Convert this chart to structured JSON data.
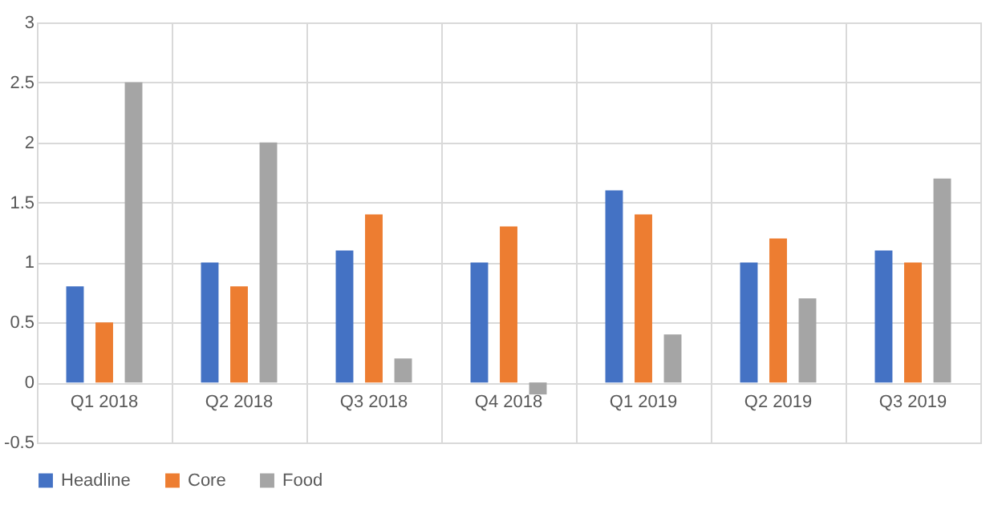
{
  "chart_data": {
    "type": "bar",
    "categories": [
      "Q1 2018",
      "Q2 2018",
      "Q3 2018",
      "Q4 2018",
      "Q1 2019",
      "Q2 2019",
      "Q3 2019"
    ],
    "series": [
      {
        "name": "Headline",
        "color": "#4472c4",
        "values": [
          0.8,
          1.0,
          1.1,
          1.0,
          1.6,
          1.0,
          1.1
        ]
      },
      {
        "name": "Core",
        "color": "#ed7d31",
        "values": [
          0.5,
          0.8,
          1.4,
          1.3,
          1.4,
          1.2,
          1.0
        ]
      },
      {
        "name": "Food",
        "color": "#a5a5a5",
        "values": [
          2.5,
          2.0,
          0.2,
          -0.1,
          0.4,
          0.7,
          1.7
        ]
      }
    ],
    "ylim": [
      -0.5,
      3
    ],
    "yticks": [
      -0.5,
      0,
      0.5,
      1,
      1.5,
      2,
      2.5,
      3
    ],
    "grid": true,
    "legend": "bottom"
  }
}
